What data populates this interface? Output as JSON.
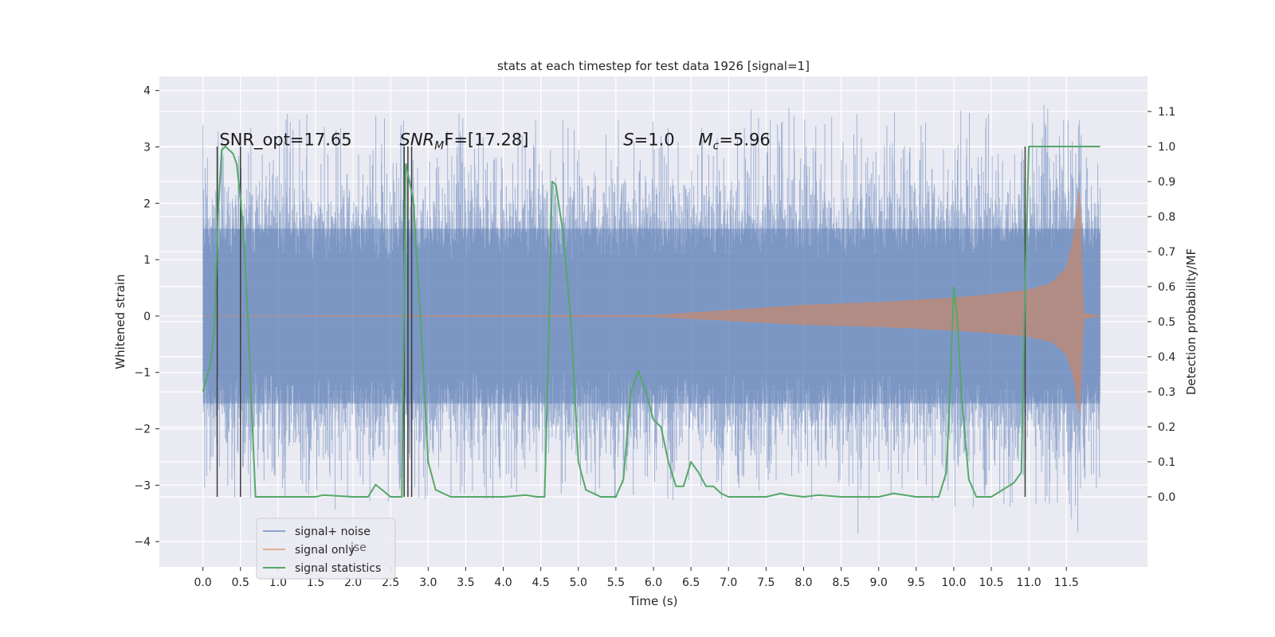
{
  "chart_data": {
    "type": "line",
    "title": "stats at each timestep for test data 1926 [signal=1]",
    "xlabel": "Time (s)",
    "ylabel_left": "Whitened strain",
    "ylabel_right": "Detection probability/MF",
    "xlim": [
      -0.58,
      12.58
    ],
    "ylim_left": [
      -4.45,
      4.25
    ],
    "ylim_right": [
      -0.2,
      1.2
    ],
    "x_ticks": [
      "0.0",
      "0.5",
      "1.0",
      "1.5",
      "2.0",
      "2.5",
      "3.0",
      "3.5",
      "4.0",
      "4.5",
      "5.0",
      "5.5",
      "6.0",
      "6.5",
      "7.0",
      "7.5",
      "8.0",
      "8.5",
      "9.0",
      "9.5",
      "10.0",
      "10.5",
      "11.0",
      "11.5"
    ],
    "y_ticks_left": [
      "−4",
      "−3",
      "−2",
      "−1",
      "0",
      "1",
      "2",
      "3",
      "4"
    ],
    "y_ticks_right": [
      "0.0",
      "0.1",
      "0.2",
      "0.3",
      "0.4",
      "0.5",
      "0.6",
      "0.7",
      "0.8",
      "0.9",
      "1.0",
      "1.1"
    ],
    "grid": true,
    "legend_position": "lower-left",
    "series": [
      {
        "name": "signal+ noise",
        "color": "#4c72b0",
        "x_range": [
          0.0,
          11.95
        ],
        "envelope_typical": [
          -1.6,
          1.6
        ],
        "envelope_peaks": [
          -3.4,
          3.8
        ]
      },
      {
        "name": "signal only",
        "color": "#dd8452",
        "chirp_envelope": [
          [
            0.0,
            0.0
          ],
          [
            6.0,
            0.01
          ],
          [
            7.0,
            0.1
          ],
          [
            8.0,
            0.19
          ],
          [
            9.0,
            0.24
          ],
          [
            10.0,
            0.32
          ],
          [
            10.5,
            0.38
          ],
          [
            11.0,
            0.46
          ],
          [
            11.3,
            0.58
          ],
          [
            11.5,
            0.85
          ],
          [
            11.6,
            1.4
          ],
          [
            11.68,
            2.3
          ],
          [
            11.72,
            0.05
          ],
          [
            11.95,
            0.0
          ]
        ]
      },
      {
        "name": "signal statistics",
        "color": "#55a868",
        "x": [
          0.0,
          0.1,
          0.15,
          0.2,
          0.25,
          0.3,
          0.4,
          0.45,
          0.5,
          0.55,
          0.6,
          0.7,
          0.75,
          1.0,
          1.5,
          1.6,
          2.0,
          2.2,
          2.3,
          2.5,
          2.6,
          2.65,
          2.7,
          2.75,
          2.8,
          2.9,
          3.0,
          3.1,
          3.3,
          3.5,
          4.0,
          4.3,
          4.45,
          4.55,
          4.6,
          4.65,
          4.7,
          4.8,
          4.9,
          5.0,
          5.1,
          5.3,
          5.5,
          5.6,
          5.7,
          5.8,
          5.9,
          6.0,
          6.1,
          6.2,
          6.3,
          6.4,
          6.5,
          6.6,
          6.7,
          6.8,
          6.9,
          7.0,
          7.5,
          7.7,
          7.8,
          8.0,
          8.2,
          8.5,
          9.0,
          9.2,
          9.5,
          9.8,
          9.9,
          9.95,
          10.0,
          10.05,
          10.1,
          10.2,
          10.3,
          10.5,
          10.8,
          10.9,
          10.95,
          11.0,
          11.1,
          11.5,
          11.95
        ],
        "y": [
          0.3,
          0.38,
          0.47,
          0.8,
          0.99,
          1.0,
          0.98,
          0.95,
          0.85,
          0.72,
          0.5,
          0.0,
          0.0,
          0.0,
          0.0,
          0.005,
          0.0,
          0.0,
          0.035,
          0.0,
          0.0,
          0.0,
          0.95,
          0.9,
          0.85,
          0.5,
          0.1,
          0.02,
          0.0,
          0.0,
          0.0,
          0.005,
          0.0,
          0.0,
          0.4,
          0.9,
          0.89,
          0.75,
          0.5,
          0.1,
          0.02,
          0.0,
          0.0,
          0.05,
          0.3,
          0.36,
          0.3,
          0.22,
          0.2,
          0.1,
          0.03,
          0.03,
          0.1,
          0.07,
          0.03,
          0.03,
          0.01,
          0.0,
          0.0,
          0.01,
          0.005,
          0.0,
          0.005,
          0.0,
          0.0,
          0.01,
          0.0,
          0.0,
          0.07,
          0.3,
          0.6,
          0.5,
          0.3,
          0.05,
          0.0,
          0.0,
          0.04,
          0.07,
          0.6,
          1.0,
          1.0,
          1.0,
          1.0
        ]
      }
    ],
    "vertical_markers_x": [
      0.19,
      0.5,
      2.68,
      2.73,
      2.78,
      10.95
    ],
    "annotations": [
      {
        "text": "SNR_opt=17.65",
        "x": 0.22,
        "y": 3.0
      },
      {
        "text": "SNR",
        "sub": "M",
        "rest": "F=[17.28]",
        "x": 2.62,
        "y": 3.0
      },
      {
        "text": "S",
        "rest": "=1.0",
        "x": 5.6,
        "y": 3.0
      },
      {
        "text": "M",
        "sub": "c",
        "rest": "=5.96",
        "x": 6.6,
        "y": 3.0
      }
    ],
    "legend_ghost_text": "ise"
  }
}
